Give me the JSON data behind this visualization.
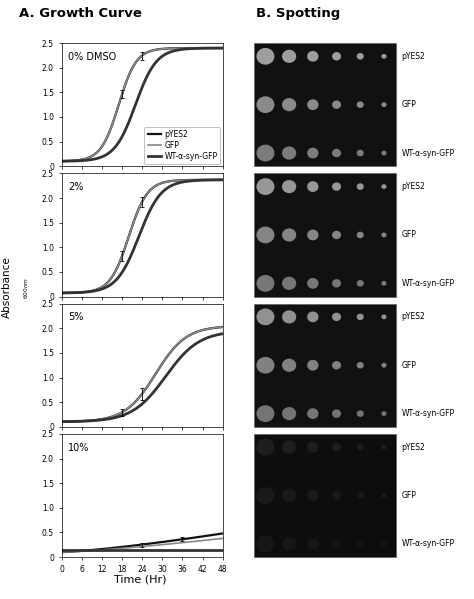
{
  "title_A": "A. Growth Curve",
  "title_B": "B. Spotting",
  "ylabel": "Absorbance",
  "ylabel_sub": "600nm",
  "xlabel": "Time (Hr)",
  "panel_labels": [
    "0% DMSO",
    "2%",
    "5%",
    "10%"
  ],
  "legend_labels": [
    "pYES2",
    "GFP",
    "WT-α-syn-GFP"
  ],
  "spotting_labels": [
    "pYES2",
    "GFP",
    "WT-α-syn-GFP"
  ],
  "x_ticks": [
    0,
    6,
    12,
    18,
    24,
    30,
    36,
    42,
    48
  ],
  "ylim": [
    0,
    2.5
  ],
  "yticks": [
    0,
    0.5,
    1.0,
    1.5,
    2.0,
    2.5
  ],
  "bg_color": "#ffffff",
  "spot_bg_color": "#111111",
  "spot_bg_color_10": "#0a0a0a",
  "spot_color_bright": "#b0b0b0",
  "spot_color_mid": "#888888",
  "spot_color_dim": "#555555",
  "n_spot_cols": 6,
  "n_spot_rows": 3,
  "line_color_pyES2": "#111111",
  "line_color_GFP": "#888888",
  "line_color_WT": "#333333",
  "lw_pyES2": 1.6,
  "lw_GFP": 1.2,
  "lw_WT": 2.0
}
